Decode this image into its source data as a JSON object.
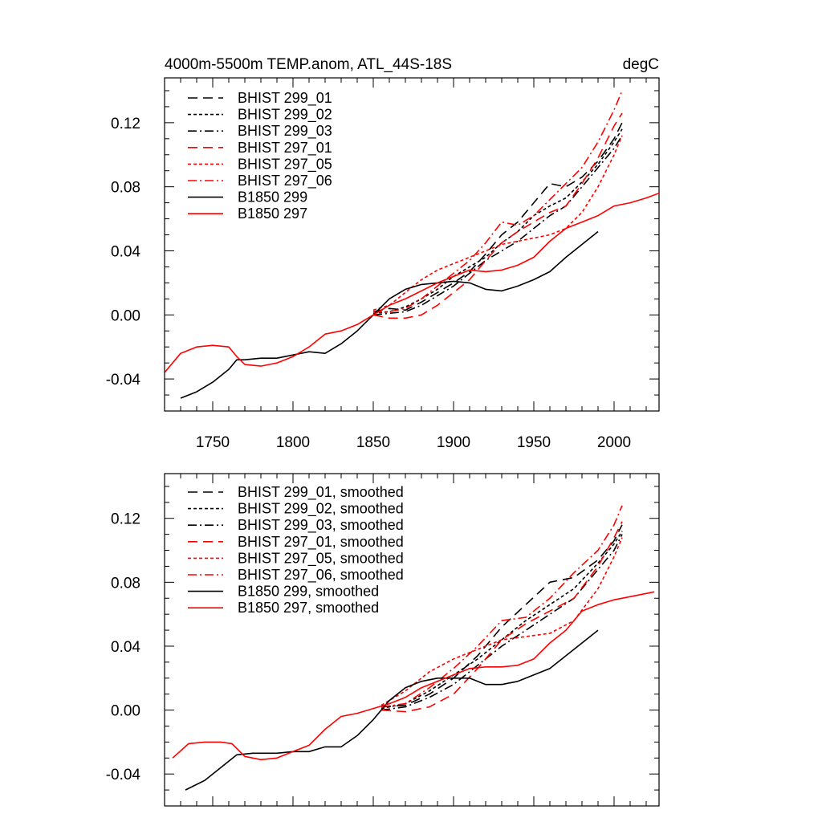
{
  "figure": {
    "title_left": "4000m-5500m TEMP.anom, ATL_44S-18S",
    "title_right": "degC"
  },
  "chart_data": [
    {
      "type": "line",
      "title": "4000m-5500m TEMP.anom, ATL_44S-18S",
      "units": "degC",
      "xlim": [
        1720,
        2028
      ],
      "ylim": [
        -0.06,
        0.148
      ],
      "xticks": [
        1750,
        1800,
        1850,
        1900,
        1950,
        2000
      ],
      "xtick_labels": [
        "1750",
        "1800",
        "1850",
        "1900",
        "1950",
        "2000"
      ],
      "yticks": [
        -0.04,
        0.0,
        0.04,
        0.08,
        0.12
      ],
      "ytick_labels": [
        "-0.04",
        "0.00",
        "0.04",
        "0.08",
        "0.12"
      ],
      "legend_position": "top-left",
      "series": [
        {
          "name": "BHIST 299_01",
          "color": "#000000",
          "dash": "long-dash",
          "x": [
            1850,
            1860,
            1870,
            1880,
            1890,
            1900,
            1910,
            1920,
            1930,
            1940,
            1950,
            1960,
            1970,
            1980,
            1990,
            2000,
            2005
          ],
          "y": [
            0.002,
            0.004,
            0.003,
            0.008,
            0.014,
            0.02,
            0.027,
            0.038,
            0.05,
            0.058,
            0.07,
            0.082,
            0.08,
            0.086,
            0.096,
            0.11,
            0.12
          ]
        },
        {
          "name": "BHIST 299_02",
          "color": "#000000",
          "dash": "short-dash",
          "x": [
            1850,
            1860,
            1870,
            1880,
            1890,
            1900,
            1910,
            1920,
            1930,
            1940,
            1950,
            1960,
            1970,
            1980,
            1990,
            2000,
            2005
          ],
          "y": [
            0.001,
            0.002,
            0.005,
            0.01,
            0.016,
            0.024,
            0.03,
            0.036,
            0.045,
            0.052,
            0.062,
            0.068,
            0.073,
            0.083,
            0.094,
            0.108,
            0.116
          ]
        },
        {
          "name": "BHIST 299_03",
          "color": "#000000",
          "dash": "dash-dot",
          "x": [
            1850,
            1860,
            1870,
            1880,
            1890,
            1900,
            1910,
            1920,
            1930,
            1940,
            1950,
            1960,
            1970,
            1980,
            1990,
            2000,
            2005
          ],
          "y": [
            0.0,
            0.001,
            0.002,
            0.006,
            0.012,
            0.018,
            0.026,
            0.034,
            0.04,
            0.046,
            0.054,
            0.062,
            0.068,
            0.08,
            0.092,
            0.104,
            0.112
          ]
        },
        {
          "name": "BHIST 297_01",
          "color": "#ff0000",
          "dash": "long-dash",
          "x": [
            1850,
            1860,
            1870,
            1880,
            1890,
            1900,
            1910,
            1920,
            1930,
            1940,
            1950,
            1960,
            1970,
            1980,
            1990,
            2000,
            2005
          ],
          "y": [
            0.0,
            -0.002,
            -0.002,
            0.0,
            0.006,
            0.014,
            0.022,
            0.034,
            0.045,
            0.052,
            0.058,
            0.064,
            0.068,
            0.082,
            0.098,
            0.118,
            0.126
          ]
        },
        {
          "name": "BHIST 297_05",
          "color": "#ff0000",
          "dash": "short-dash",
          "x": [
            1850,
            1860,
            1870,
            1880,
            1890,
            1900,
            1910,
            1920,
            1930,
            1940,
            1950,
            1960,
            1970,
            1980,
            1990,
            2000,
            2005
          ],
          "y": [
            0.003,
            0.006,
            0.014,
            0.022,
            0.028,
            0.032,
            0.036,
            0.04,
            0.044,
            0.046,
            0.048,
            0.05,
            0.054,
            0.064,
            0.08,
            0.1,
            0.112
          ]
        },
        {
          "name": "BHIST 297_06",
          "color": "#ff0000",
          "dash": "dash-dot",
          "x": [
            1850,
            1860,
            1870,
            1880,
            1890,
            1900,
            1910,
            1920,
            1930,
            1940,
            1950,
            1960,
            1970,
            1980,
            1990,
            2000,
            2005
          ],
          "y": [
            0.002,
            0.002,
            0.004,
            0.01,
            0.018,
            0.026,
            0.034,
            0.045,
            0.058,
            0.056,
            0.062,
            0.072,
            0.082,
            0.092,
            0.108,
            0.128,
            0.14
          ]
        },
        {
          "name": "B1850 299",
          "color": "#000000",
          "dash": "solid",
          "x": [
            1730,
            1740,
            1750,
            1760,
            1765,
            1770,
            1780,
            1790,
            1800,
            1810,
            1820,
            1830,
            1840,
            1850,
            1860,
            1870,
            1880,
            1890,
            1900,
            1910,
            1920,
            1930,
            1940,
            1950,
            1960,
            1970,
            1980,
            1990
          ],
          "y": [
            -0.052,
            -0.048,
            -0.042,
            -0.034,
            -0.028,
            -0.028,
            -0.027,
            -0.027,
            -0.025,
            -0.023,
            -0.024,
            -0.018,
            -0.01,
            0.0,
            0.01,
            0.016,
            0.019,
            0.02,
            0.021,
            0.02,
            0.016,
            0.015,
            0.018,
            0.022,
            0.027,
            0.036,
            0.044,
            0.052
          ]
        },
        {
          "name": "B1850 297",
          "color": "#ff0000",
          "dash": "solid",
          "x": [
            1720,
            1730,
            1740,
            1750,
            1760,
            1765,
            1770,
            1780,
            1790,
            1800,
            1810,
            1820,
            1830,
            1840,
            1850,
            1860,
            1870,
            1880,
            1890,
            1900,
            1910,
            1920,
            1930,
            1940,
            1950,
            1960,
            1970,
            1980,
            1990,
            2000,
            2010,
            2020,
            2028
          ],
          "y": [
            -0.036,
            -0.024,
            -0.02,
            -0.019,
            -0.02,
            -0.026,
            -0.031,
            -0.032,
            -0.03,
            -0.026,
            -0.02,
            -0.012,
            -0.01,
            -0.006,
            0.0,
            0.006,
            0.01,
            0.015,
            0.02,
            0.024,
            0.028,
            0.027,
            0.028,
            0.031,
            0.036,
            0.046,
            0.054,
            0.058,
            0.062,
            0.068,
            0.07,
            0.073,
            0.076
          ]
        }
      ]
    },
    {
      "type": "line",
      "title": "",
      "xlim": [
        1720,
        2028
      ],
      "ylim": [
        -0.06,
        0.148
      ],
      "yticks": [
        -0.04,
        0.0,
        0.04,
        0.08,
        0.12
      ],
      "ytick_labels": [
        "-0.04",
        "0.00",
        "0.04",
        "0.08",
        "0.12"
      ],
      "legend_position": "top-left",
      "series": [
        {
          "name": "BHIST 299_01, smoothed",
          "color": "#000000",
          "dash": "long-dash",
          "x": [
            1855,
            1870,
            1885,
            1900,
            1915,
            1930,
            1945,
            1960,
            1975,
            1990,
            2000,
            2005
          ],
          "y": [
            0.002,
            0.003,
            0.01,
            0.02,
            0.034,
            0.052,
            0.066,
            0.08,
            0.083,
            0.094,
            0.106,
            0.116
          ]
        },
        {
          "name": "BHIST 299_02, smoothed",
          "color": "#000000",
          "dash": "short-dash",
          "x": [
            1855,
            1870,
            1885,
            1900,
            1915,
            1930,
            1945,
            1960,
            1975,
            1990,
            2000,
            2005
          ],
          "y": [
            0.001,
            0.004,
            0.012,
            0.022,
            0.032,
            0.044,
            0.056,
            0.066,
            0.076,
            0.092,
            0.104,
            0.112
          ]
        },
        {
          "name": "BHIST 299_03, smoothed",
          "color": "#000000",
          "dash": "dash-dot",
          "x": [
            1855,
            1870,
            1885,
            1900,
            1915,
            1930,
            1945,
            1960,
            1975,
            1990,
            2000,
            2005
          ],
          "y": [
            0.0,
            0.002,
            0.008,
            0.016,
            0.028,
            0.04,
            0.05,
            0.06,
            0.07,
            0.088,
            0.1,
            0.11
          ]
        },
        {
          "name": "BHIST 297_01, smoothed",
          "color": "#ff0000",
          "dash": "long-dash",
          "x": [
            1855,
            1870,
            1885,
            1900,
            1915,
            1930,
            1945,
            1960,
            1975,
            1990,
            2000,
            2005
          ],
          "y": [
            0.0,
            -0.001,
            0.002,
            0.01,
            0.026,
            0.044,
            0.054,
            0.062,
            0.07,
            0.09,
            0.108,
            0.118
          ]
        },
        {
          "name": "BHIST 297_05, smoothed",
          "color": "#ff0000",
          "dash": "short-dash",
          "x": [
            1855,
            1870,
            1885,
            1900,
            1915,
            1930,
            1945,
            1960,
            1975,
            1990,
            2000,
            2005
          ],
          "y": [
            0.003,
            0.012,
            0.024,
            0.032,
            0.038,
            0.044,
            0.046,
            0.048,
            0.056,
            0.076,
            0.096,
            0.108
          ]
        },
        {
          "name": "BHIST 297_06, smoothed",
          "color": "#ff0000",
          "dash": "dash-dot",
          "x": [
            1855,
            1870,
            1885,
            1900,
            1915,
            1930,
            1945,
            1960,
            1975,
            1990,
            2000,
            2005
          ],
          "y": [
            0.002,
            0.004,
            0.014,
            0.026,
            0.04,
            0.056,
            0.058,
            0.07,
            0.086,
            0.1,
            0.116,
            0.128
          ]
        },
        {
          "name": "B1850 299, smoothed",
          "color": "#000000",
          "dash": "solid",
          "x": [
            1733,
            1745,
            1755,
            1765,
            1775,
            1790,
            1800,
            1810,
            1820,
            1830,
            1840,
            1850,
            1860,
            1870,
            1880,
            1890,
            1900,
            1910,
            1920,
            1930,
            1940,
            1950,
            1960,
            1970,
            1980,
            1990
          ],
          "y": [
            -0.05,
            -0.044,
            -0.036,
            -0.028,
            -0.027,
            -0.027,
            -0.026,
            -0.026,
            -0.023,
            -0.023,
            -0.016,
            -0.006,
            0.006,
            0.014,
            0.018,
            0.02,
            0.02,
            0.02,
            0.016,
            0.016,
            0.018,
            0.022,
            0.026,
            0.034,
            0.042,
            0.05
          ]
        },
        {
          "name": "B1850 297, smoothed",
          "color": "#ff0000",
          "dash": "solid",
          "x": [
            1725,
            1735,
            1745,
            1755,
            1762,
            1770,
            1780,
            1790,
            1800,
            1810,
            1820,
            1830,
            1840,
            1850,
            1860,
            1870,
            1880,
            1890,
            1900,
            1910,
            1920,
            1930,
            1940,
            1950,
            1960,
            1970,
            1980,
            1990,
            2000,
            2010,
            2020,
            2025
          ],
          "y": [
            -0.03,
            -0.021,
            -0.02,
            -0.02,
            -0.021,
            -0.029,
            -0.031,
            -0.03,
            -0.026,
            -0.022,
            -0.012,
            -0.004,
            -0.002,
            0.001,
            0.004,
            0.008,
            0.014,
            0.018,
            0.022,
            0.026,
            0.027,
            0.027,
            0.028,
            0.032,
            0.042,
            0.05,
            0.062,
            0.066,
            0.069,
            0.071,
            0.073,
            0.074
          ]
        }
      ]
    }
  ]
}
